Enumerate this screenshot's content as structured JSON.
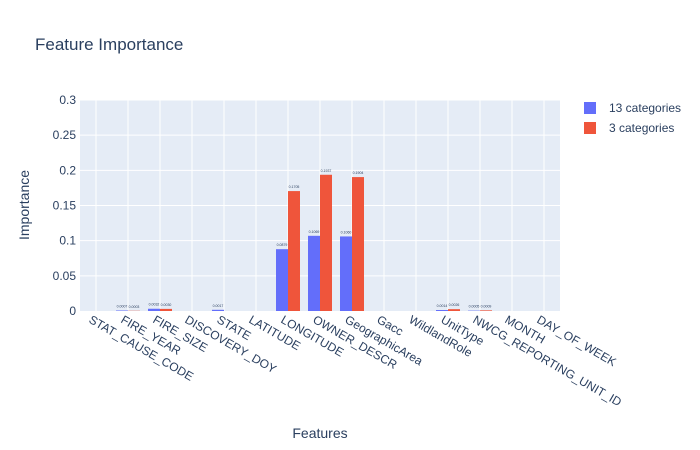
{
  "chart_data": {
    "type": "bar",
    "title": "Feature Importance",
    "xlabel": "Features",
    "ylabel": "Importance",
    "ylim": [
      0,
      0.3
    ],
    "yticks": [
      "0",
      "0.05",
      "0.1",
      "0.15",
      "0.2",
      "0.25",
      "0.3"
    ],
    "grid": true,
    "legend_position": "top-right",
    "categories": [
      "STAT_CAUSE_CODE",
      "FIRE_YEAR",
      "FIRE_SIZE",
      "DISCOVERY_DOY",
      "STATE",
      "LATITUDE",
      "LONGITUDE",
      "OWNER_DESCR",
      "GeographicArea",
      "Gacc",
      "WildlandRole",
      "UnitType",
      "NWCG_REPORTING_UNIT_ID",
      "MONTH",
      "DAY_OF_WEEK"
    ],
    "series": [
      {
        "name": "13 categories",
        "color": "#636efa",
        "values": [
          0,
          0.0007,
          0.0032,
          0,
          0.0017,
          0,
          0.0879,
          0.1069,
          0.106,
          0,
          0,
          0.0014,
          0.0005,
          0,
          0
        ],
        "labels": [
          "",
          "0.0007",
          "0.0032",
          "",
          "0.0017",
          "",
          "0.0879",
          "0.1069",
          "0.1060",
          "",
          "",
          "0.0014",
          "0.0005",
          "",
          ""
        ]
      },
      {
        "name": "3 categories",
        "color": "#ef553b",
        "values": [
          0,
          0.0003,
          0.003,
          0,
          0,
          0,
          0.1705,
          0.1937,
          0.1904,
          0,
          0,
          0.0026,
          0.0009,
          0,
          0
        ],
        "labels": [
          "",
          "0.0003",
          "0.0030",
          "",
          "",
          "",
          "0.1705",
          "0.1937",
          "0.1904",
          "",
          "",
          "0.0026",
          "0.0009",
          "",
          ""
        ]
      }
    ]
  }
}
